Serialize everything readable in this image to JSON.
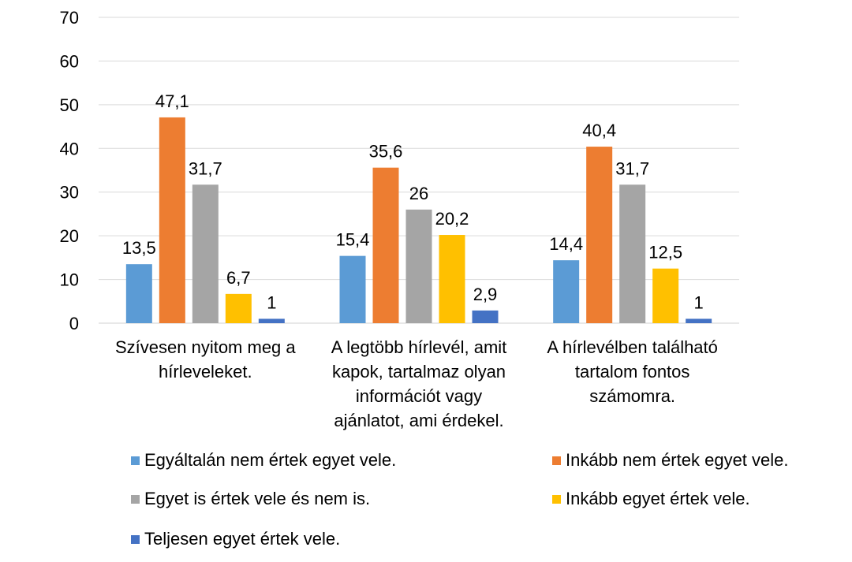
{
  "chart_data": {
    "type": "bar",
    "categories": [
      "Szívesen nyitom meg a hírleveleket.",
      "A legtöbb hírlevél, amit kapok, tartalmaz olyan információt vagy ajánlatot, ami érdekel.",
      "A hírlevélben található tartalom fontos számomra."
    ],
    "category_lines": [
      [
        "Szívesen nyitom meg a",
        "hírleveleket."
      ],
      [
        "A legtöbb hírlevél, amit",
        "kapok, tartalmaz olyan",
        "információt vagy",
        "ajánlatot, ami érdekel."
      ],
      [
        "A hírlevélben található",
        "tartalom fontos",
        "számomra."
      ]
    ],
    "series": [
      {
        "name": "Egyáltalán nem értek egyet vele.",
        "color": "#5B9BD5",
        "values": [
          13.5,
          15.4,
          14.4
        ],
        "labels": [
          "13,5",
          "15,4",
          "14,4"
        ]
      },
      {
        "name": "Inkább nem értek egyet vele.",
        "color": "#ED7D31",
        "values": [
          47.1,
          35.6,
          40.4
        ],
        "labels": [
          "47,1",
          "35,6",
          "40,4"
        ]
      },
      {
        "name": "Egyet is értek vele és nem is.",
        "color": "#A5A5A5",
        "values": [
          31.7,
          26,
          31.7
        ],
        "labels": [
          "31,7",
          "26",
          "31,7"
        ]
      },
      {
        "name": "Inkább egyet értek vele.",
        "color": "#FFC000",
        "values": [
          6.7,
          20.2,
          12.5
        ],
        "labels": [
          "6,7",
          "20,2",
          "12,5"
        ]
      },
      {
        "name": "Teljesen egyet értek vele.",
        "color": "#4472C4",
        "values": [
          1,
          2.9,
          1
        ],
        "labels": [
          "1",
          "2,9",
          "1"
        ]
      }
    ],
    "ylim": [
      0,
      70
    ],
    "yticks": [
      "0",
      "10",
      "20",
      "30",
      "40",
      "50",
      "60",
      "70"
    ],
    "grid": true,
    "legend": "bottom"
  }
}
